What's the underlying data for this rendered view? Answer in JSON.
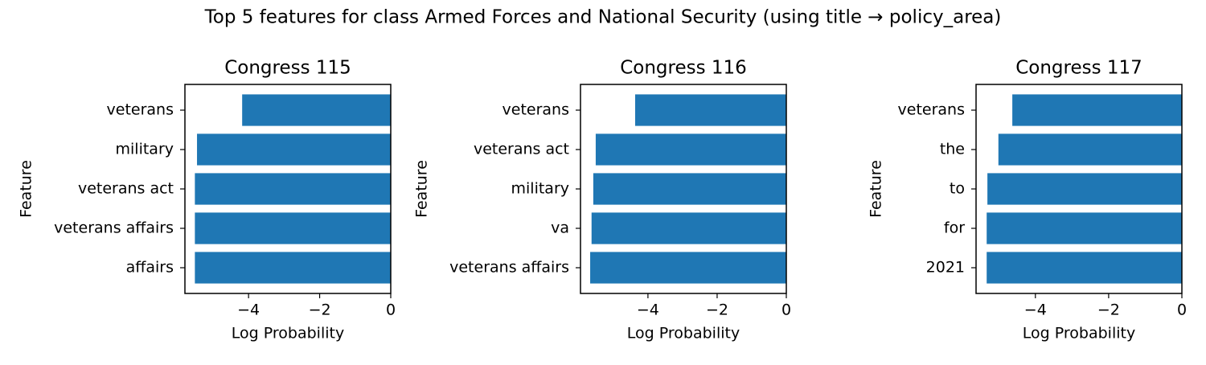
{
  "title": "Top 5 features for class Armed Forces and National Security (using title → policy_area)",
  "chart_data": [
    {
      "type": "barh",
      "title": "Congress 115",
      "xlabel": "Log Probability",
      "ylabel": "Feature",
      "color": "#1f77b4",
      "categories": [
        "veterans",
        "military",
        "veterans act",
        "veterans affairs",
        "affairs"
      ],
      "values": [
        -4.18,
        -5.45,
        -5.51,
        -5.51,
        -5.51
      ],
      "xlim": [
        -5.79,
        0
      ],
      "xticks": [
        {
          "value": -4,
          "label": "−4"
        },
        {
          "value": -2,
          "label": "−2"
        },
        0
      ]
    },
    {
      "type": "barh",
      "title": "Congress 116",
      "xlabel": "Log Probability",
      "ylabel": "Feature",
      "color": "#1f77b4",
      "categories": [
        "veterans",
        "veterans act",
        "military",
        "va",
        "veterans affairs"
      ],
      "values": [
        -4.37,
        -5.51,
        -5.58,
        -5.63,
        -5.67
      ],
      "xlim": [
        -5.95,
        0
      ],
      "xticks": [
        {
          "value": -4,
          "label": "−4"
        },
        {
          "value": -2,
          "label": "−2"
        },
        0
      ]
    },
    {
      "type": "barh",
      "title": "Congress 117",
      "xlabel": "Log Probability",
      "ylabel": "Feature",
      "color": "#1f77b4",
      "categories": [
        "veterans",
        "the",
        "to",
        "for",
        "2021"
      ],
      "values": [
        -4.63,
        -5.01,
        -5.31,
        -5.33,
        -5.33
      ],
      "xlim": [
        -5.62,
        0
      ],
      "xticks": [
        {
          "value": -4,
          "label": "−4"
        },
        {
          "value": -2,
          "label": "−2"
        },
        0
      ]
    }
  ]
}
